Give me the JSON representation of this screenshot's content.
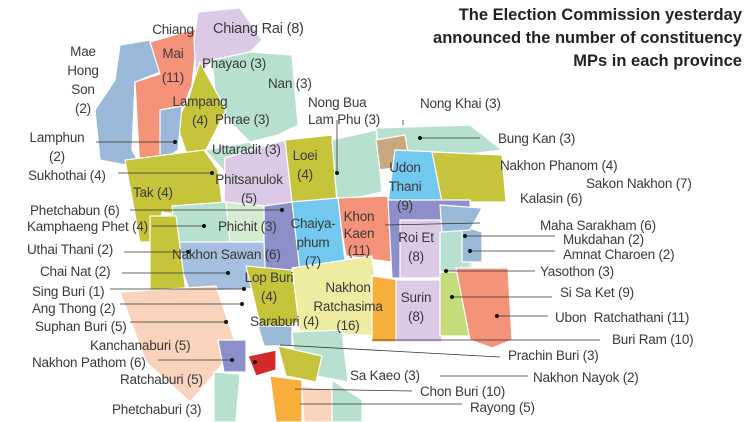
{
  "title": {
    "lines": [
      "The Election Commission yesterday",
      "announced the number of constituency",
      "MPs in each province"
    ]
  },
  "colors": {
    "north_blue": "#9ab8d8",
    "salmon": "#f4927a",
    "lavender": "#dcc9e6",
    "mint": "#b8e0cf",
    "olive": "#c5c43a",
    "sky": "#72c8ee",
    "purple": "#8c8fc8",
    "peach": "#f9d3bb",
    "pale_yellow": "#eeeca0",
    "orange": "#f7ae3a",
    "lime": "#c4dc7a",
    "tan": "#c9a880",
    "red": "#d42a2a"
  },
  "provinces": [
    {
      "label": "Chiang Rai (8)"
    },
    {
      "label": "Chiang\nMai\n(11)"
    },
    {
      "label": "Mae\nHong\nSon\n(2)"
    },
    {
      "label": "Phayao (3)"
    },
    {
      "label": "Nan (3)"
    },
    {
      "label": "Lampang\n(4)"
    },
    {
      "label": "Phrae (3)"
    },
    {
      "label": "Lamphun\n(2)"
    },
    {
      "label": "Uttaradit (3)"
    },
    {
      "label": "Loei\n(4)"
    },
    {
      "label": "Nong Bua\nLam Phu (3)"
    },
    {
      "label": "Nong Khai (3)"
    },
    {
      "label": "Bung Kan (3)"
    },
    {
      "label": "Nakhon Phanom (4)"
    },
    {
      "label": "Udon\nThani\n(9)"
    },
    {
      "label": "Sakon Nakhon (7)"
    },
    {
      "label": "Kalasin (6)"
    },
    {
      "label": "Sukhothai (4)"
    },
    {
      "label": "Tak (4)"
    },
    {
      "label": "Phitsanulok\n(5)"
    },
    {
      "label": "Phetchabun (6)"
    },
    {
      "label": "Kamphaeng Phet (4)"
    },
    {
      "label": "Phichit (3)"
    },
    {
      "label": "Chaiya-\nphum\n(7)"
    },
    {
      "label": "Khon\nKaen\n(11)"
    },
    {
      "label": "Maha Sarakham (6)"
    },
    {
      "label": "Roi Et\n(8)"
    },
    {
      "label": "Mukdahan (2)"
    },
    {
      "label": "Uthai Thani (2)"
    },
    {
      "label": "Amnat Charoen (2)"
    },
    {
      "label": "Nakhon Sawan (6)"
    },
    {
      "label": "Chai Nat (2)"
    },
    {
      "label": "Yasothon (3)"
    },
    {
      "label": "Lop Buri\n(4)"
    },
    {
      "label": "Nakhon\nRatchasima\n(16)"
    },
    {
      "label": "Sing Buri (1)"
    },
    {
      "label": "Si Sa Ket (9)"
    },
    {
      "label": "Surin\n(8)"
    },
    {
      "label": "Ang Thong (2)"
    },
    {
      "label": "Suphan Buri (5)"
    },
    {
      "label": "Saraburi (4)"
    },
    {
      "label": "Ubon  Ratchathani (11)"
    },
    {
      "label": "Kanchanaburi (5)"
    },
    {
      "label": "Buri Ram (10)"
    },
    {
      "label": "Nakhon Pathom (6)"
    },
    {
      "label": "Prachin Buri (3)"
    },
    {
      "label": "Sa Kaeo (3)"
    },
    {
      "label": "Ratchaburi (5)"
    },
    {
      "label": "Nakhon Nayok (2)"
    },
    {
      "label": "Chon Buri (10)"
    },
    {
      "label": "Phetchaburi (3)"
    },
    {
      "label": "Rayong (5)"
    }
  ]
}
